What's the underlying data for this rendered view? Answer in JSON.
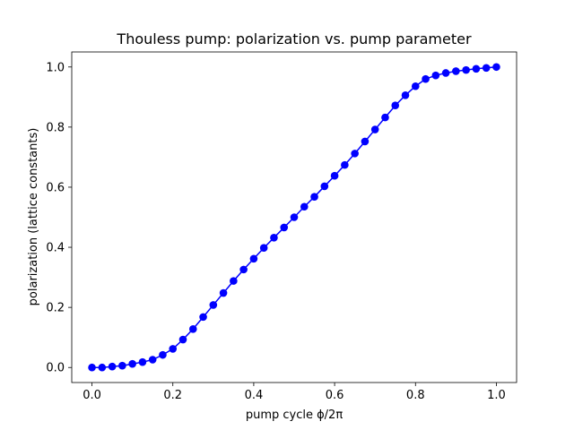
{
  "chart_data": {
    "type": "line",
    "title": "Thouless pump: polarization vs. pump parameter",
    "xlabel": "pump cycle ϕ/2π",
    "ylabel": "polarization (lattice constants)",
    "xlim": [
      -0.05,
      1.05
    ],
    "ylim": [
      -0.05,
      1.05
    ],
    "xticks": [
      0.0,
      0.2,
      0.4,
      0.6,
      0.8,
      1.0
    ],
    "yticks": [
      0.0,
      0.2,
      0.4,
      0.6,
      0.8,
      1.0
    ],
    "xtick_labels": [
      "0.0",
      "0.2",
      "0.4",
      "0.6",
      "0.8",
      "1.0"
    ],
    "ytick_labels": [
      "0.0",
      "0.2",
      "0.4",
      "0.6",
      "0.8",
      "1.0"
    ],
    "grid": false,
    "legend": null,
    "series": [
      {
        "color": "#0000ff",
        "marker": "circle",
        "x": [
          0.0,
          0.025,
          0.05,
          0.075,
          0.1,
          0.125,
          0.15,
          0.175,
          0.2,
          0.225,
          0.25,
          0.275,
          0.3,
          0.325,
          0.35,
          0.375,
          0.4,
          0.425,
          0.45,
          0.475,
          0.5,
          0.525,
          0.55,
          0.575,
          0.6,
          0.625,
          0.65,
          0.675,
          0.7,
          0.725,
          0.75,
          0.775,
          0.8,
          0.825,
          0.85,
          0.875,
          0.9,
          0.925,
          0.95,
          0.975,
          1.0
        ],
        "y": [
          0.0,
          0.0,
          0.003,
          0.006,
          0.012,
          0.018,
          0.026,
          0.042,
          0.062,
          0.093,
          0.128,
          0.168,
          0.208,
          0.248,
          0.288,
          0.326,
          0.362,
          0.398,
          0.432,
          0.466,
          0.5,
          0.535,
          0.568,
          0.603,
          0.638,
          0.674,
          0.712,
          0.752,
          0.792,
          0.832,
          0.872,
          0.906,
          0.936,
          0.96,
          0.972,
          0.98,
          0.986,
          0.99,
          0.994,
          0.997,
          1.0
        ]
      }
    ]
  }
}
